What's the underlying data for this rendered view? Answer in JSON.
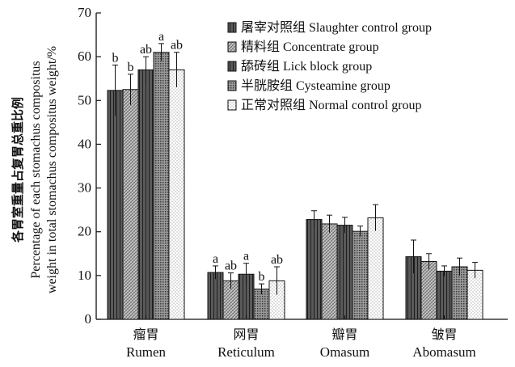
{
  "chart_data": {
    "type": "bar",
    "ylabel_cn": "各胃室重量占复胃总重比例",
    "ylabel_en_line1": "Percentage of each stomachus compositus",
    "ylabel_en_line2": "weight in total stomachus compositus weight/%",
    "ylim": [
      0,
      70
    ],
    "yticks": [
      "0",
      "10",
      "20",
      "30",
      "40",
      "50",
      "60",
      "70"
    ],
    "categories": [
      {
        "cn": "瘤胃",
        "en": "Rumen"
      },
      {
        "cn": "网胃",
        "en": "Reticulum"
      },
      {
        "cn": "瓣胃",
        "en": "Omasum"
      },
      {
        "cn": "皱胃",
        "en": "Abomasum"
      }
    ],
    "series": [
      {
        "name": "屠宰对照组 Slaughter control group",
        "pattern": "dark-lines",
        "values": [
          52.3,
          10.7,
          22.8,
          14.3
        ],
        "errors": [
          5.8,
          1.5,
          2.0,
          3.8
        ],
        "labels": [
          "b",
          "a",
          "",
          ""
        ]
      },
      {
        "name": "精料组 Concentrate group",
        "pattern": "crosshatch",
        "values": [
          52.5,
          8.8,
          21.8,
          13.2
        ],
        "errors": [
          3.5,
          1.8,
          2.0,
          1.8
        ],
        "labels": [
          "b",
          "ab",
          "",
          ""
        ]
      },
      {
        "name": "舔砖组 Lick block group",
        "pattern": "dark-lines",
        "values": [
          57.0,
          10.3,
          21.5,
          11.0
        ],
        "errors": [
          3.0,
          2.5,
          1.8,
          1.2
        ],
        "labels": [
          "ab",
          "a",
          "",
          ""
        ]
      },
      {
        "name": "半胱胺组 Cysteamine group",
        "pattern": "grid",
        "values": [
          61.0,
          6.9,
          20.1,
          12.0
        ],
        "errors": [
          2.0,
          1.2,
          1.2,
          2.0
        ],
        "labels": [
          "a",
          "b",
          "",
          ""
        ]
      },
      {
        "name": "正常对照组 Normal control group",
        "pattern": "dots",
        "values": [
          57.0,
          8.8,
          23.2,
          11.2
        ],
        "errors": [
          4.0,
          3.2,
          3.0,
          1.8
        ],
        "labels": [
          "ab",
          "ab",
          "",
          ""
        ]
      }
    ],
    "grid": false,
    "legend_position": "top-right"
  }
}
